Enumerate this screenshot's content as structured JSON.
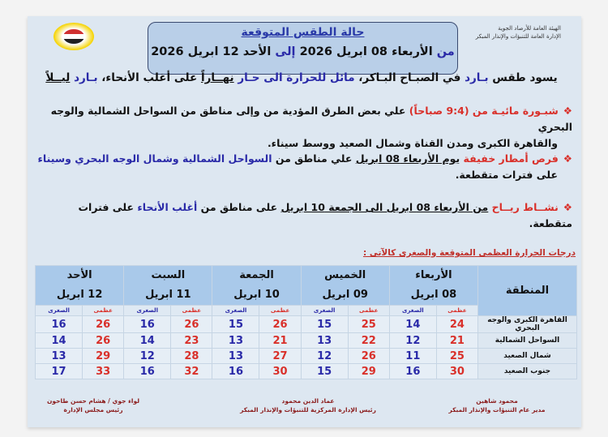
{
  "org": {
    "line1": "الهيئة العامة للأرصاد الجوية",
    "line2": "الإدارة العامة للتنبؤات والإنذار المبكر"
  },
  "title": "حالة الطقس المتوقعة",
  "period": {
    "from": "من",
    "start": "الأربعاء 08 ابريل 2026",
    "to": "إلى",
    "end": "الأحد 12 ابريل 2026"
  },
  "lead": {
    "p1": "يسود طقس ",
    "w1": "بـارد",
    "p2": " في الصبـاح البـاكر، ",
    "w2": "مائل للحرارة الى حـار",
    "p3": " ",
    "w3": "نهــاراً",
    "p4": " على أغلب الأنحاء، ",
    "w4": "بـارد",
    "p5": " ",
    "w5": "ليــلاً"
  },
  "bullets": [
    {
      "head": "شبـورة مائيـة من (9:4 صباحاً)",
      "line1": " علي بعض الطرق المؤدية من وإلى مناطق من السواحل الشمالية والوجه البحري",
      "line2": "والقاهرة الكبرى ومدن القناة وشمال الصعيد ووسط سيناء."
    },
    {
      "head": "فرص أمطار خفيفة",
      "date": "يوم الأربعاء 08 ابريل",
      "mid": " علي مناطق من ",
      "areas": "السواحل الشمالية وشمال الوجه البحري وسيناء",
      "line2": "على فترات متقطعة."
    },
    {
      "head": "نشــاط ريــاح",
      "date": "من الأربعاء 08 ابريل الى الجمعة 10 ابريل",
      "mid": " على مناطق من ",
      "areas": "أغلب الأنحاء",
      "tail": " على فترات متقطعة."
    }
  ],
  "table": {
    "caption": "درجات الحرارة العظمى المتوقعة والصغرى كالآتى :",
    "region_header": "المنطقة",
    "days": [
      {
        "name": "الأربعاء",
        "date": "08 ابريل"
      },
      {
        "name": "الخميس",
        "date": "09 ابريل"
      },
      {
        "name": "الجمعة",
        "date": "10 ابريل"
      },
      {
        "name": "السبت",
        "date": "11 ابريل"
      },
      {
        "name": "الأحد",
        "date": "12 ابريل"
      }
    ],
    "max_label": "عظمى",
    "min_label": "الصغرى",
    "rows": [
      {
        "region": "القاهرة الكبرى والوجه البحري",
        "vals": [
          [
            24,
            14
          ],
          [
            25,
            15
          ],
          [
            26,
            15
          ],
          [
            26,
            16
          ],
          [
            26,
            16
          ]
        ]
      },
      {
        "region": "السواحل الشمالية",
        "vals": [
          [
            21,
            12
          ],
          [
            22,
            13
          ],
          [
            21,
            13
          ],
          [
            23,
            14
          ],
          [
            26,
            14
          ]
        ]
      },
      {
        "region": "شمال الصعيد",
        "vals": [
          [
            25,
            11
          ],
          [
            26,
            12
          ],
          [
            27,
            13
          ],
          [
            28,
            12
          ],
          [
            29,
            13
          ]
        ]
      },
      {
        "region": "جنوب الصعيد",
        "vals": [
          [
            30,
            16
          ],
          [
            29,
            15
          ],
          [
            30,
            16
          ],
          [
            32,
            16
          ],
          [
            33,
            17
          ]
        ]
      }
    ]
  },
  "signatures": [
    {
      "name": "محمود شاهين",
      "title": "مدير عام التنبؤات والإنذار المبكر"
    },
    {
      "name": "عماد الدين محمود",
      "title": "رئيس الإدارة المركزية للتنبؤات والإنذار المبكر"
    },
    {
      "name": "لواء جوي / هشام حسن طاحون",
      "title": "رئيس مجلس الإدارة"
    }
  ],
  "colors": {
    "max": "#d9302a",
    "min": "#2a2aa8",
    "header": "#a9c9ea",
    "card": "#dde7f1"
  }
}
